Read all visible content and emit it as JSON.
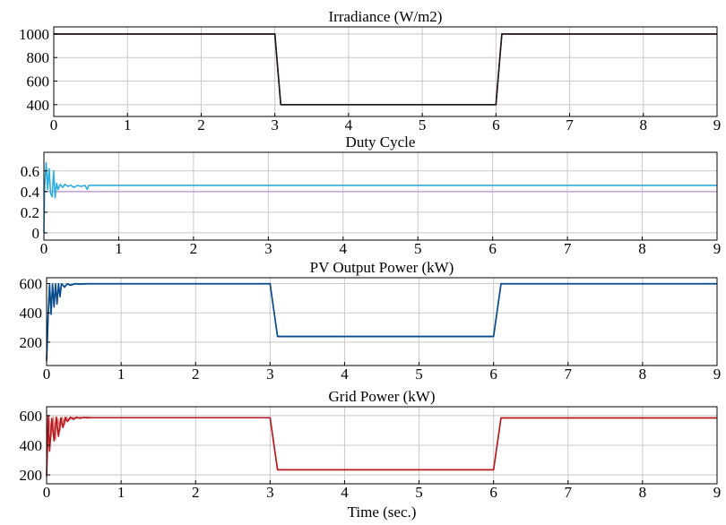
{
  "chart_data": [
    {
      "type": "line",
      "title": "Irradiance (W/m2)",
      "xlabel": "",
      "xlim": [
        0,
        9
      ],
      "ylim": [
        300,
        1060
      ],
      "xticks": [
        0,
        1,
        2,
        3,
        4,
        5,
        6,
        7,
        8,
        9
      ],
      "yticks": [
        400,
        600,
        800,
        1000
      ],
      "grid": true,
      "series": [
        {
          "color": "#c0392b",
          "x": [
            0,
            3,
            3.08,
            6,
            6.08,
            9
          ],
          "y": [
            1000,
            1000,
            400,
            400,
            1000,
            1000
          ]
        },
        {
          "color": "#1a1a1a",
          "x": [
            0,
            3,
            3.08,
            6,
            6.08,
            9
          ],
          "y": [
            1000,
            1000,
            400,
            400,
            1000,
            1000
          ]
        }
      ]
    },
    {
      "type": "line",
      "title": "Duty Cycle",
      "xlabel": "",
      "xlim": [
        0,
        9
      ],
      "ylim": [
        -0.07,
        0.78
      ],
      "xticks": [
        0,
        1,
        2,
        3,
        4,
        5,
        6,
        7,
        8,
        9
      ],
      "yticks": [
        0,
        0.2,
        0.4,
        0.6
      ],
      "grid": true,
      "series": [
        {
          "color": "#c8a8d8",
          "x": [
            0,
            9
          ],
          "y": [
            0.4,
            0.4
          ]
        },
        {
          "color": "#2eaee0",
          "x": [
            0,
            0.01,
            0.03,
            0.05,
            0.07,
            0.09,
            0.11,
            0.13,
            0.15,
            0.17,
            0.19,
            0.22,
            0.25,
            0.28,
            0.32,
            0.36,
            0.4,
            0.45,
            0.5,
            0.55,
            0.58,
            0.6,
            0.65,
            9
          ],
          "y": [
            0,
            0.45,
            0.68,
            0.42,
            0.62,
            0.38,
            0.35,
            0.6,
            0.34,
            0.48,
            0.42,
            0.47,
            0.44,
            0.47,
            0.45,
            0.46,
            0.44,
            0.46,
            0.45,
            0.46,
            0.42,
            0.46,
            0.46,
            0.46
          ]
        }
      ]
    },
    {
      "type": "line",
      "title": "PV Output Power (kW)",
      "xlabel": "",
      "xlim": [
        0,
        9
      ],
      "ylim": [
        40,
        640
      ],
      "xticks": [
        0,
        1,
        2,
        3,
        4,
        5,
        6,
        7,
        8,
        9
      ],
      "yticks": [
        200,
        400,
        600
      ],
      "grid": true,
      "series": [
        {
          "color": "#3a8fd0",
          "x": [
            0,
            0.02,
            0.04,
            0.06,
            0.08,
            0.1,
            0.12,
            0.14,
            0.16,
            0.18,
            0.2,
            0.24,
            0.28,
            0.32,
            0.38,
            0.45,
            0.55,
            3,
            3.1,
            6,
            6.1,
            9
          ],
          "y": [
            80,
            380,
            600,
            400,
            600,
            450,
            600,
            470,
            600,
            520,
            600,
            580,
            600,
            590,
            600,
            598,
            600,
            600,
            240,
            240,
            600,
            600
          ]
        },
        {
          "color": "#0d4a8a",
          "x": [
            0,
            0.02,
            0.04,
            0.06,
            0.08,
            0.1,
            0.12,
            0.14,
            0.16,
            0.18,
            0.2,
            0.24,
            0.28,
            0.32,
            0.38,
            0.45,
            0.55,
            3,
            3.1,
            6,
            6.1,
            9
          ],
          "y": [
            70,
            360,
            590,
            390,
            595,
            440,
            595,
            460,
            598,
            510,
            598,
            575,
            598,
            588,
            598,
            596,
            598,
            598,
            238,
            238,
            598,
            598
          ]
        }
      ]
    },
    {
      "type": "line",
      "title": "Grid Power (kW)",
      "xlabel": "Time (sec.)",
      "xlim": [
        0,
        9
      ],
      "ylim": [
        140,
        660
      ],
      "xticks": [
        0,
        1,
        2,
        3,
        4,
        5,
        6,
        7,
        8,
        9
      ],
      "yticks": [
        200,
        400,
        600
      ],
      "grid": true,
      "series": [
        {
          "color": "#e09090",
          "x": [
            0,
            0.03,
            0.06,
            0.09,
            0.12,
            0.15,
            0.18,
            0.21,
            0.24,
            0.27,
            0.3,
            0.35,
            0.4,
            0.45,
            0.5,
            0.55,
            0.6,
            3,
            3.1,
            6,
            6.1,
            9
          ],
          "y": [
            200,
            600,
            460,
            590,
            440,
            580,
            500,
            590,
            540,
            590,
            570,
            590,
            580,
            590,
            585,
            590,
            586,
            586,
            236,
            236,
            586,
            586
          ]
        },
        {
          "color": "#b5171c",
          "x": [
            0,
            0.02,
            0.04,
            0.07,
            0.1,
            0.13,
            0.16,
            0.19,
            0.22,
            0.25,
            0.28,
            0.32,
            0.36,
            0.4,
            0.45,
            0.5,
            0.55,
            0.6,
            3,
            3.1,
            6,
            6.1,
            9
          ],
          "y": [
            190,
            600,
            360,
            580,
            430,
            590,
            460,
            585,
            520,
            588,
            560,
            590,
            575,
            590,
            582,
            588,
            585,
            586,
            586,
            234,
            234,
            584,
            584
          ]
        }
      ]
    }
  ]
}
